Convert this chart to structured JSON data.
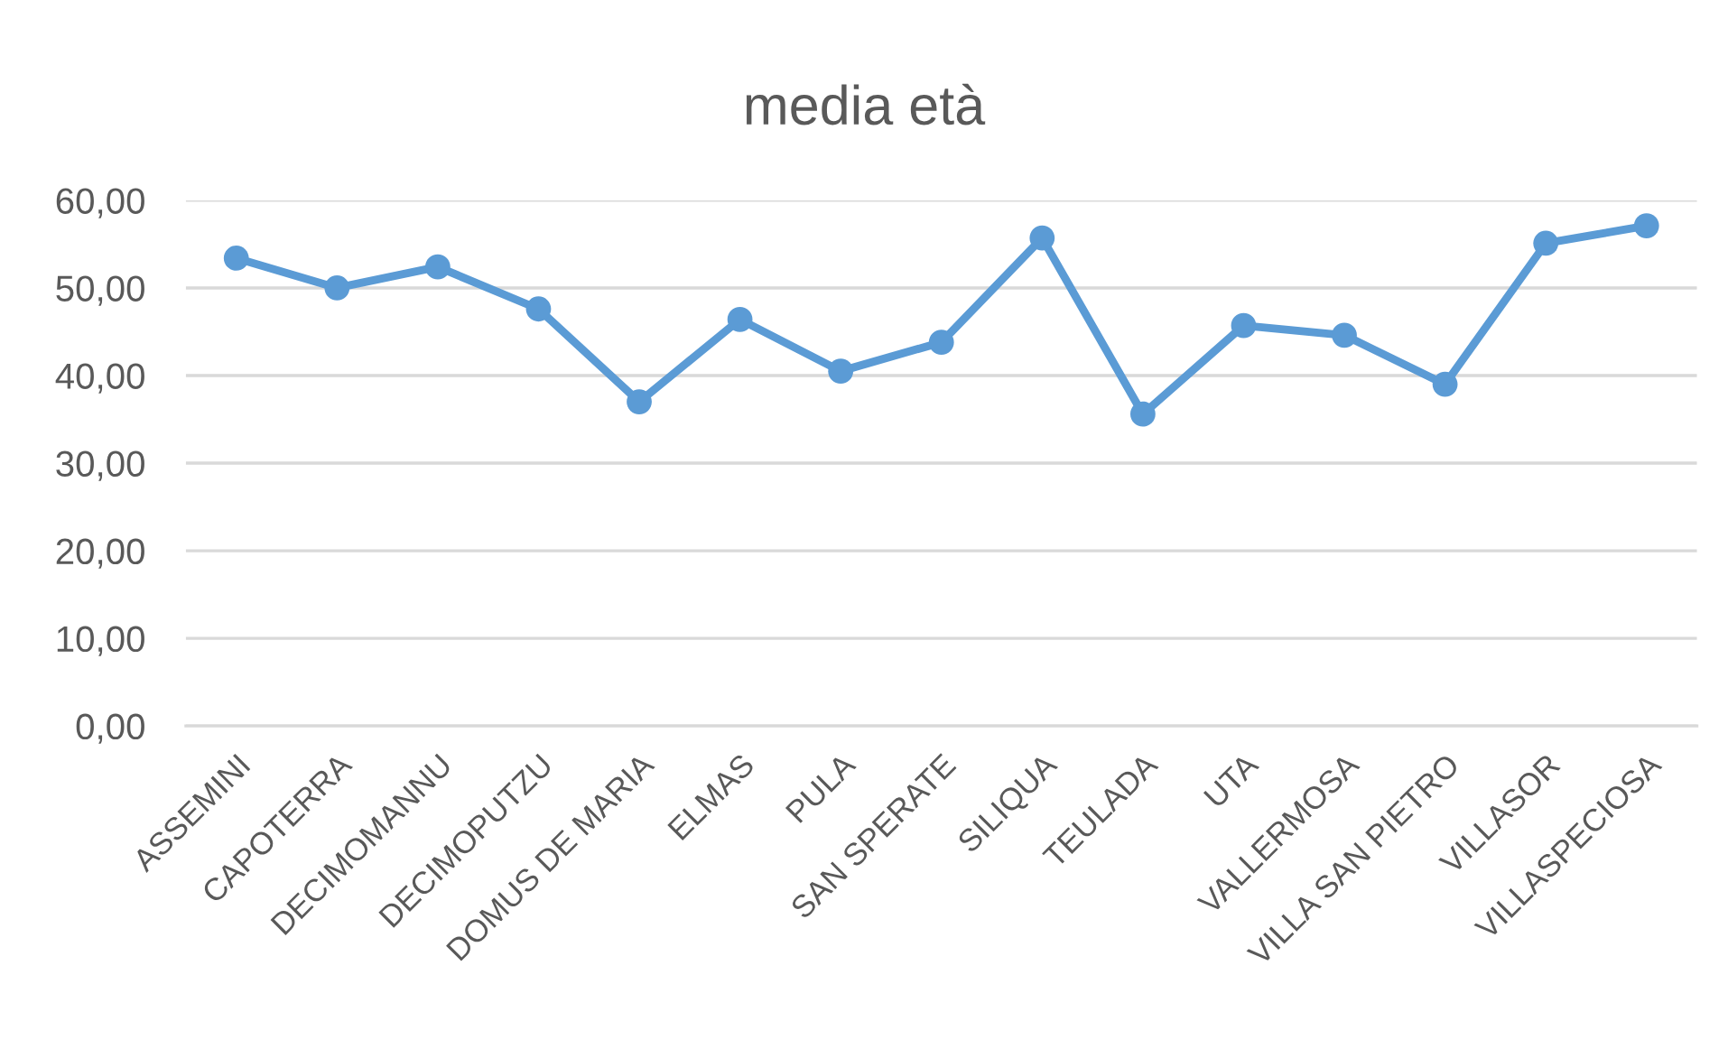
{
  "chart_data": {
    "type": "line",
    "title": "media età",
    "categories": [
      "ASSEMINI",
      "CAPOTERRA",
      "DECIMOMANNU",
      "DECIMOPUTZU",
      "DOMUS DE MARIA",
      "ELMAS",
      "PULA",
      "SAN SPERATE",
      "SILIQUA",
      "TEULADA",
      "UTA",
      "VALLERMOSA",
      "VILLA SAN PIETRO",
      "VILLASOR",
      "VILLASPECIOSA"
    ],
    "series": [
      {
        "color": "#5b9bd5",
        "values": [
          53.4,
          50.0,
          52.4,
          47.6,
          37.0,
          46.4,
          40.5,
          43.8,
          55.7,
          35.6,
          45.7,
          44.6,
          39.0,
          55.1,
          57.1
        ]
      }
    ],
    "ylim": [
      0,
      60
    ],
    "yticks": [
      {
        "value": 0,
        "label": "0,00"
      },
      {
        "value": 10,
        "label": "10,00"
      },
      {
        "value": 20,
        "label": "20,00"
      },
      {
        "value": 30,
        "label": "30,00"
      },
      {
        "value": 40,
        "label": "40,00"
      },
      {
        "value": 50,
        "label": "50,00"
      },
      {
        "value": 60,
        "label": "60,00"
      }
    ],
    "grid": "y",
    "marker": "circle",
    "line_style": "solid"
  }
}
